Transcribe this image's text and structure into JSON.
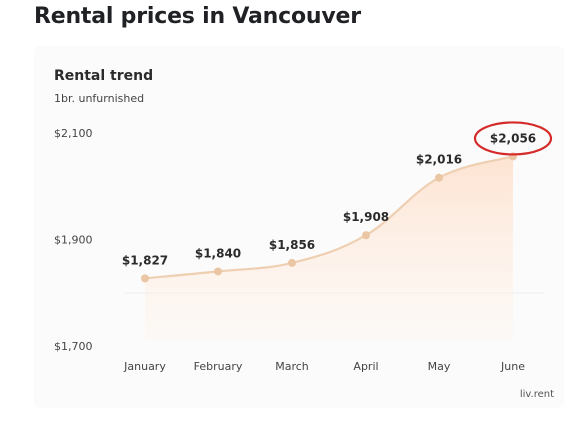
{
  "page": {
    "title": "Rental prices in Vancouver",
    "source": "liv.rent"
  },
  "chart_data": {
    "type": "area",
    "title": "Rental trend",
    "subtitle": "1br. unfurnished",
    "categories": [
      "January",
      "February",
      "March",
      "April",
      "May",
      "June"
    ],
    "series": [
      {
        "name": "",
        "values": [
          1827,
          1840,
          1856,
          1908,
          2016,
          2056
        ]
      }
    ],
    "data_labels": [
      "$1,827",
      "$1,840",
      "$1,856",
      "$1,908",
      "$2,016",
      "$2,056"
    ],
    "y_ticks": [
      2100,
      1900,
      1700
    ],
    "y_tick_labels": [
      "$2,100",
      "$1,900",
      "$1,700"
    ],
    "ylim": [
      1700,
      2100
    ],
    "xlabel": "",
    "ylabel": "",
    "grid": false,
    "highlighted_point": "June",
    "colors": {
      "line": "#efcfb2",
      "fill": "#fde7d8",
      "point": "#ebc6a4",
      "highlight": "#d42a2a",
      "label": "#2b2b2b",
      "axis_text": "#444444"
    }
  }
}
